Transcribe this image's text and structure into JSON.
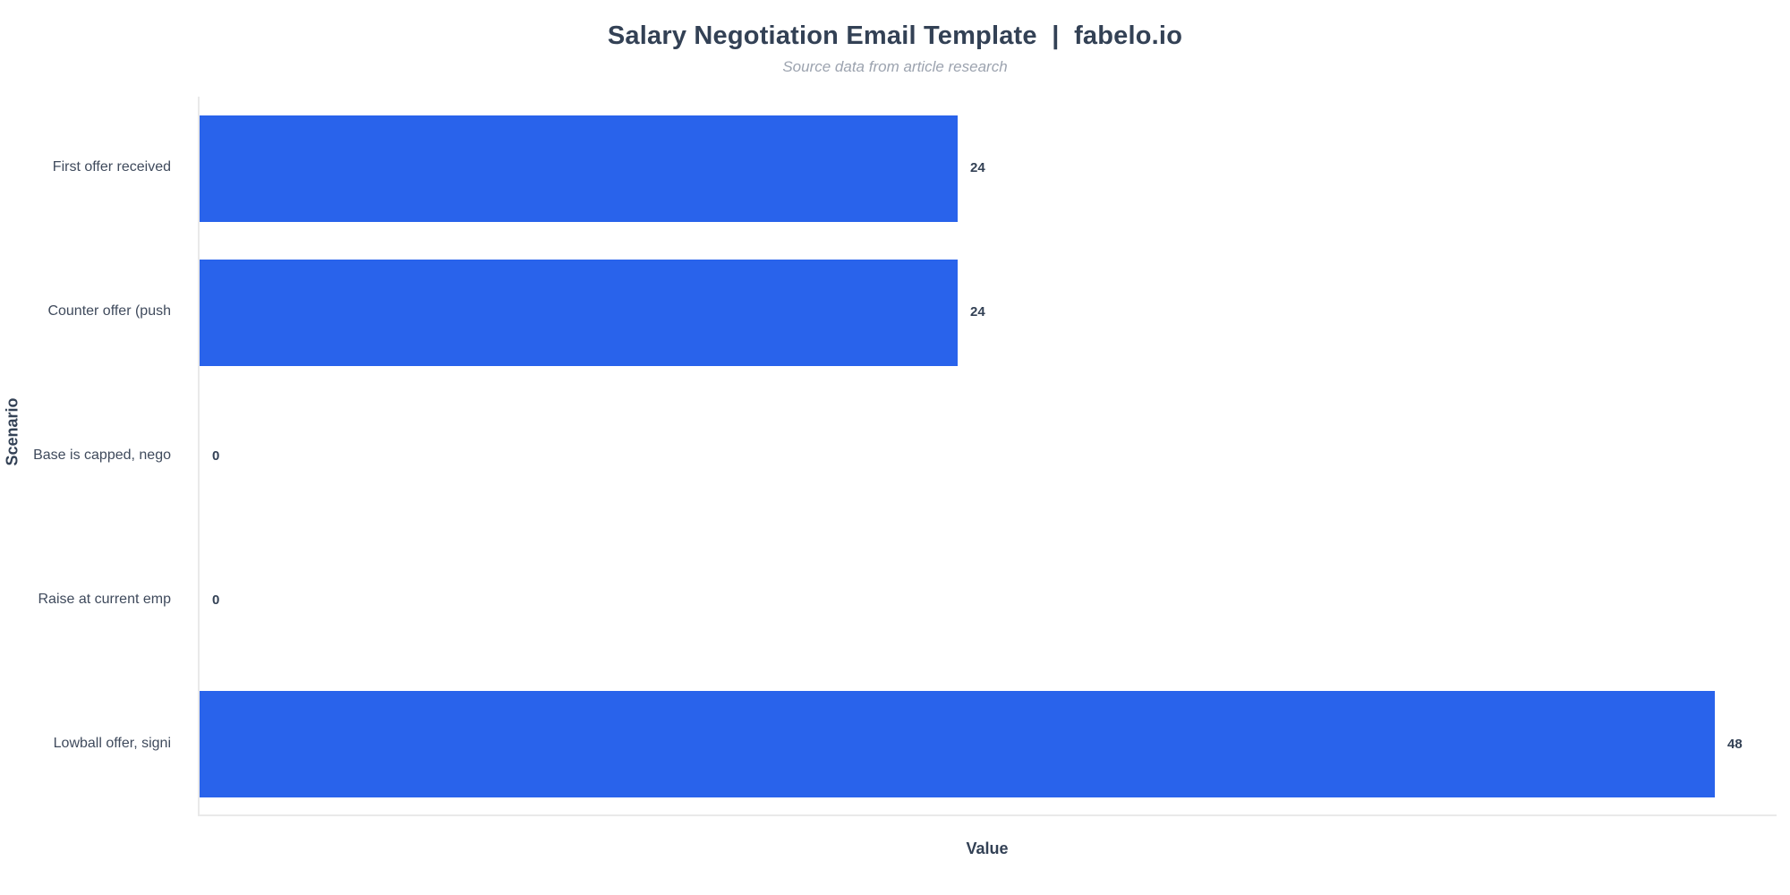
{
  "header": {
    "title": "Salary Negotiation Email Template  |  fabelo.io",
    "subtitle": "Source data from article research"
  },
  "chart_data": {
    "type": "bar",
    "orientation": "horizontal",
    "title": "Salary Negotiation Email Template  |  fabelo.io",
    "subtitle": "Source data from article research",
    "categories": [
      "First offer received",
      "Counter offer (push",
      "Base is capped, nego",
      "Raise at current emp",
      "Lowball offer, signi"
    ],
    "values": [
      24,
      24,
      0,
      0,
      48
    ],
    "value_labels": [
      "24",
      "24",
      "0",
      "0",
      "48"
    ],
    "xlabel": "Value",
    "ylabel": "Scenario",
    "xlim": [
      0,
      50
    ],
    "grid": false,
    "legend": false,
    "bar_color": "#2963eb",
    "spine_color": "#e9e9e9"
  }
}
